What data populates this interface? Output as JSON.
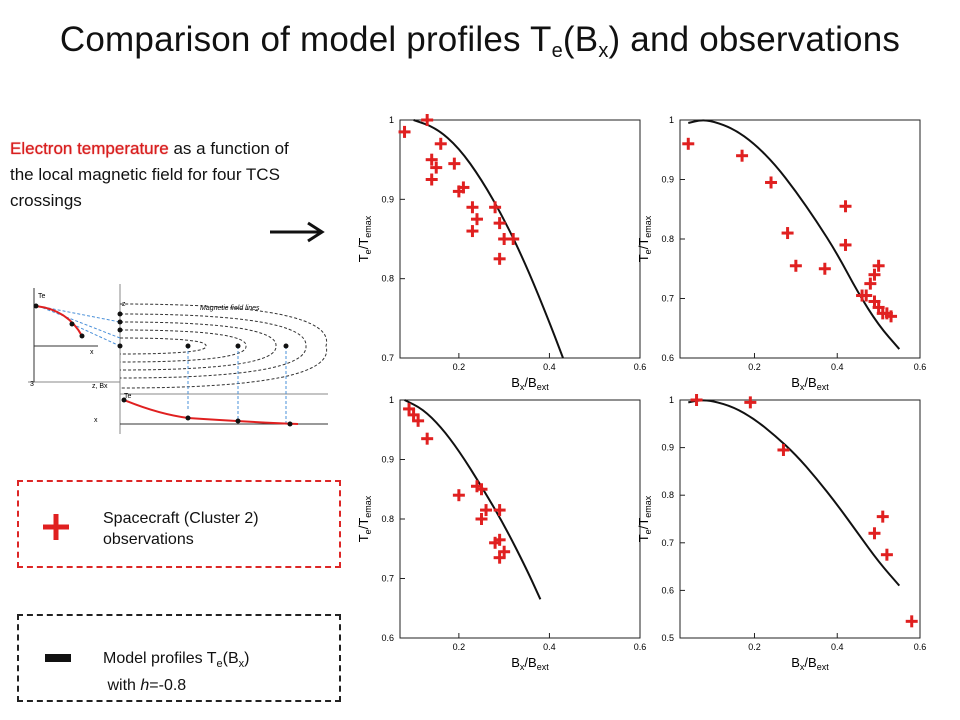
{
  "title": {
    "main": "Comparison of model profiles T",
    "sub1": "e",
    "mid": "(B",
    "sub2": "x",
    "end": ") and observations"
  },
  "description": {
    "highlight": "Electron temperature",
    "rest": " as a function of the local magnetic field for four TCS crossings"
  },
  "schematic": {
    "field_lines_label": "Magnetic field lines",
    "axis_te": "Te",
    "axis_x": "x",
    "axis_z": "z",
    "axis_zbx": "z, Bx",
    "axis_3": "3"
  },
  "legend": {
    "observations_line1": "Spacecraft (Cluster 2)",
    "observations_line2": "observations",
    "model_line1_pre": "Model profiles T",
    "model_line1_sub1": "e",
    "model_line1_mid": "(B",
    "model_line1_sub2": "x",
    "model_line1_end": ")",
    "model_line2_pre": "with ",
    "model_line2_h": "h",
    "model_line2_val": "=-0.8",
    "obs_color": "#e02020",
    "model_color": "#111111"
  },
  "chart_data": [
    {
      "type": "scatter",
      "xlabel_main": "B",
      "xlabel_sub1": "x",
      "xlabel_mid": "/B",
      "xlabel_sub2": "ext",
      "ylabel_main": "T",
      "ylabel_sub1": "e",
      "ylabel_mid": "/T",
      "ylabel_sub2": "emax",
      "xlim": [
        0.07,
        0.6
      ],
      "ylim": [
        0.7,
        1.0
      ],
      "xticks": [
        "0.2",
        "0.4",
        "0.6"
      ],
      "xtick_values": [
        0.2,
        0.4,
        0.6
      ],
      "yticks": [
        "0.7",
        "0.8",
        "0.9",
        "1"
      ],
      "ytick_values": [
        0.7,
        0.8,
        0.9,
        1.0
      ],
      "series": [
        {
          "kind": "observations",
          "x": [
            0.08,
            0.13,
            0.16,
            0.14,
            0.15,
            0.19,
            0.14,
            0.21,
            0.2,
            0.23,
            0.28,
            0.24,
            0.23,
            0.29,
            0.3,
            0.32,
            0.29
          ],
          "y": [
            0.985,
            1.0,
            0.97,
            0.95,
            0.94,
            0.945,
            0.925,
            0.915,
            0.91,
            0.89,
            0.89,
            0.875,
            0.86,
            0.87,
            0.85,
            0.85,
            0.825
          ]
        },
        {
          "kind": "model",
          "x": [
            0.1,
            0.15,
            0.2,
            0.25,
            0.3,
            0.35,
            0.4,
            0.43
          ],
          "y": [
            1.0,
            0.99,
            0.965,
            0.925,
            0.875,
            0.815,
            0.745,
            0.7
          ]
        }
      ]
    },
    {
      "type": "scatter",
      "xlabel_main": "B",
      "xlabel_sub1": "x",
      "xlabel_mid": "/B",
      "xlabel_sub2": "ext",
      "ylabel_main": "T",
      "ylabel_sub1": "e",
      "ylabel_mid": "/T",
      "ylabel_sub2": "emax",
      "xlim": [
        0.02,
        0.6
      ],
      "ylim": [
        0.6,
        1.0
      ],
      "xticks": [
        "0.2",
        "0.4",
        "0.6"
      ],
      "xtick_values": [
        0.2,
        0.4,
        0.6
      ],
      "yticks": [
        "0.6",
        "0.7",
        "0.8",
        "0.9",
        "1"
      ],
      "ytick_values": [
        0.6,
        0.7,
        0.8,
        0.9,
        1.0
      ],
      "series": [
        {
          "kind": "observations",
          "x": [
            0.04,
            0.17,
            0.24,
            0.28,
            0.3,
            0.37,
            0.42,
            0.42,
            0.49,
            0.5,
            0.48,
            0.46,
            0.47,
            0.49,
            0.5,
            0.51,
            0.52,
            0.53
          ],
          "y": [
            0.96,
            0.94,
            0.895,
            0.81,
            0.755,
            0.75,
            0.855,
            0.79,
            0.74,
            0.755,
            0.725,
            0.705,
            0.705,
            0.695,
            0.685,
            0.675,
            0.675,
            0.67
          ]
        },
        {
          "kind": "model",
          "x": [
            0.04,
            0.07,
            0.1,
            0.15,
            0.2,
            0.25,
            0.3,
            0.35,
            0.4,
            0.45,
            0.5,
            0.55
          ],
          "y": [
            0.995,
            1.0,
            0.998,
            0.985,
            0.96,
            0.925,
            0.88,
            0.83,
            0.775,
            0.71,
            0.655,
            0.615
          ]
        }
      ]
    },
    {
      "type": "scatter",
      "xlabel_main": "B",
      "xlabel_sub1": "x",
      "xlabel_mid": "/B",
      "xlabel_sub2": "ext",
      "ylabel_main": "T",
      "ylabel_sub1": "e",
      "ylabel_mid": "/T",
      "ylabel_sub2": "emax",
      "xlim": [
        0.07,
        0.6
      ],
      "ylim": [
        0.6,
        1.0
      ],
      "xticks": [
        "0.2",
        "0.4",
        "0.6"
      ],
      "xtick_values": [
        0.2,
        0.4,
        0.6
      ],
      "yticks": [
        "0.6",
        "0.7",
        "0.8",
        "0.9",
        "1"
      ],
      "ytick_values": [
        0.6,
        0.7,
        0.8,
        0.9,
        1.0
      ],
      "series": [
        {
          "kind": "observations",
          "x": [
            0.09,
            0.1,
            0.11,
            0.13,
            0.2,
            0.24,
            0.25,
            0.26,
            0.25,
            0.29,
            0.29,
            0.28,
            0.3,
            0.29
          ],
          "y": [
            0.985,
            0.975,
            0.965,
            0.935,
            0.84,
            0.855,
            0.85,
            0.815,
            0.8,
            0.815,
            0.765,
            0.76,
            0.745,
            0.735
          ]
        },
        {
          "kind": "model",
          "x": [
            0.08,
            0.12,
            0.16,
            0.2,
            0.25,
            0.3,
            0.35,
            0.38
          ],
          "y": [
            1.0,
            0.985,
            0.955,
            0.915,
            0.855,
            0.79,
            0.715,
            0.665
          ]
        }
      ]
    },
    {
      "type": "scatter",
      "xlabel_main": "B",
      "xlabel_sub1": "x",
      "xlabel_mid": "/B",
      "xlabel_sub2": "ext",
      "ylabel_main": "T",
      "ylabel_sub1": "e",
      "ylabel_mid": "/T",
      "ylabel_sub2": "emax",
      "xlim": [
        0.02,
        0.6
      ],
      "ylim": [
        0.5,
        1.0
      ],
      "xticks": [
        "0.2",
        "0.4",
        "0.6"
      ],
      "xtick_values": [
        0.2,
        0.4,
        0.6
      ],
      "yticks": [
        "0.5",
        "0.6",
        "0.7",
        "0.8",
        "0.9",
        "1"
      ],
      "ytick_values": [
        0.5,
        0.6,
        0.7,
        0.8,
        0.9,
        1.0
      ],
      "series": [
        {
          "kind": "observations",
          "x": [
            0.06,
            0.19,
            0.27,
            0.51,
            0.49,
            0.52,
            0.58
          ],
          "y": [
            1.0,
            0.995,
            0.895,
            0.755,
            0.72,
            0.675,
            0.535
          ]
        },
        {
          "kind": "model",
          "x": [
            0.04,
            0.07,
            0.1,
            0.15,
            0.2,
            0.25,
            0.3,
            0.35,
            0.4,
            0.45,
            0.5,
            0.55
          ],
          "y": [
            0.995,
            1.0,
            0.998,
            0.985,
            0.96,
            0.925,
            0.885,
            0.835,
            0.78,
            0.72,
            0.66,
            0.61
          ]
        }
      ]
    }
  ]
}
